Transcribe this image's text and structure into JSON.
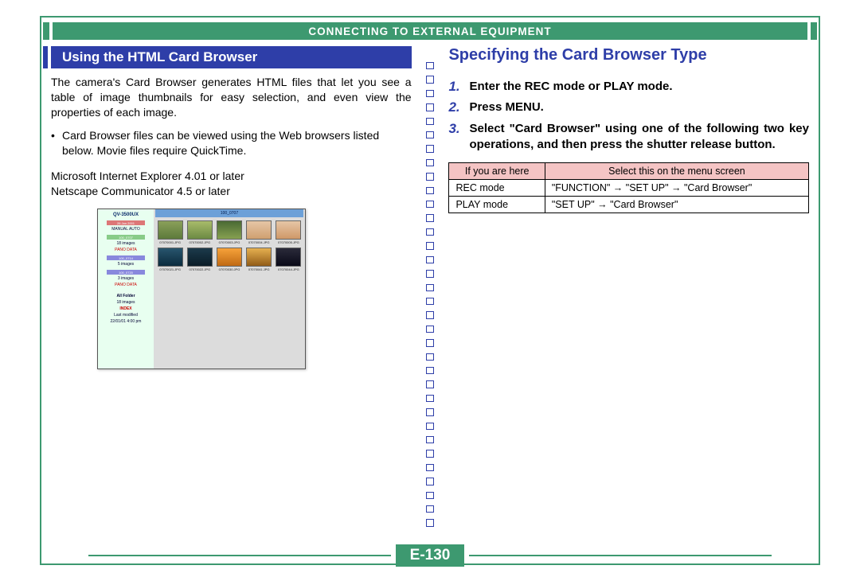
{
  "header": {
    "title": "CONNECTING TO EXTERNAL EQUIPMENT",
    "bg_color": "#3d9970",
    "text_color": "#ffffff"
  },
  "border_color": "#3d9970",
  "page_number": "E-130",
  "left": {
    "section_title": "Using the HTML Card Browser",
    "section_bg": "#2e3ea8",
    "intro": "The camera's Card Browser generates HTML files that let you see a table of image thumbnails for easy selection, and even view the properties of each image.",
    "bullet": "Card Browser files can be viewed using the Web browsers listed below. Movie files require QuickTime.",
    "browser_1": "Microsoft Internet Explorer 4.01 or later",
    "browser_2": "Netscape Communicator 4.5 or later",
    "preview": {
      "camera": "QV-3500UX",
      "side_items": [
        {
          "label": "26 Jan 2001",
          "sub": "MANUAL   AUTO"
        },
        {
          "label": "100_0707",
          "sub": "18 images",
          "links": "PANO   DATA"
        },
        {
          "label": "100_0714",
          "sub": "5 images"
        },
        {
          "label": "100_0720",
          "sub": "3 images",
          "links": "PANO   DATA"
        }
      ],
      "footer": [
        "All Folder",
        "18 images",
        "INDEX",
        "Last modified",
        "22/01/01 4:00 pm"
      ],
      "grid_header": "100_0707",
      "thumbs": [
        {
          "cap": "07070001.JPG",
          "bg": "linear-gradient(#8aa05a,#5d7a3b)"
        },
        {
          "cap": "07070002.JPG",
          "bg": "linear-gradient(#a8bb6a,#6c8a43)"
        },
        {
          "cap": "07070003.JPG",
          "bg": "linear-gradient(#4a6a34,#86a050)"
        },
        {
          "cap": "07070004.JPG",
          "bg": "linear-gradient(#e6c6a6,#d0a070)"
        },
        {
          "cap": "07070005.JPG",
          "bg": "linear-gradient(#e6c6a6,#cf9868)"
        },
        {
          "cap": "07070021.JPG",
          "bg": "linear-gradient(#28556d,#0b2b3e)"
        },
        {
          "cap": "07070022.JPG",
          "bg": "linear-gradient(#1c3a4b,#0a1c27)"
        },
        {
          "cap": "07070030.JPG",
          "bg": "linear-gradient(#f6a23a,#c06a14)"
        },
        {
          "cap": "07070041.JPG",
          "bg": "linear-gradient(#e6b050,#915c18)"
        },
        {
          "cap": "07070044.JPG",
          "bg": "linear-gradient(#2a2a3a,#0a0a18)"
        }
      ]
    }
  },
  "separator": {
    "square_border": "#2e3ea8",
    "square_count": 34
  },
  "right": {
    "title": "Specifying the Card Browser Type",
    "title_color": "#2e3ea8",
    "steps": [
      {
        "num": "1.",
        "text": "Enter the REC mode or PLAY mode."
      },
      {
        "num": "2.",
        "text": "Press MENU."
      },
      {
        "num": "3.",
        "text": "Select \"Card Browser\" using one of the following two key operations, and then press the shutter release button."
      }
    ],
    "table": {
      "header_bg": "#f4c4c4",
      "head_left": "If you are here",
      "head_right": "Select this on the menu screen",
      "rows": [
        {
          "left": "REC mode",
          "right": "\"FUNCTION\" → \"SET UP\" → \"Card Browser\""
        },
        {
          "left": "PLAY mode",
          "right": "\"SET UP\" → \"Card Browser\""
        }
      ]
    }
  }
}
